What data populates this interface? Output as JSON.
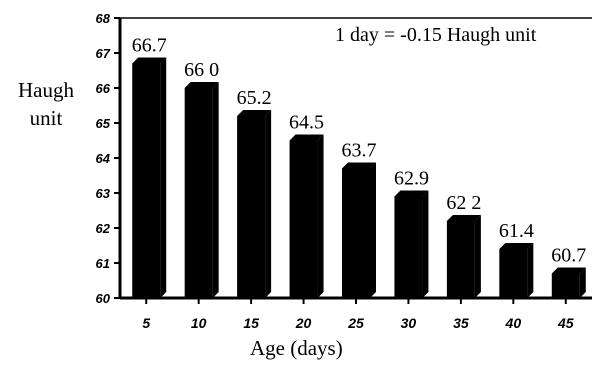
{
  "chart_data": {
    "type": "bar",
    "categories": [
      "5",
      "10",
      "15",
      "20",
      "25",
      "30",
      "35",
      "40",
      "45"
    ],
    "values": [
      66.7,
      66.0,
      65.2,
      64.5,
      63.7,
      62.9,
      62.2,
      61.4,
      60.7
    ],
    "value_labels": [
      "66.7",
      "66 0",
      "65.2",
      "64.5",
      "63.7",
      "62.9",
      "62 2",
      "61.4",
      "60.7"
    ],
    "ylabel": "Haugh unit",
    "xlabel": "Age (days)",
    "annotation": "1 day = -0.15 Haugh unit",
    "ylim": [
      60,
      68
    ],
    "yticks": [
      60,
      61,
      62,
      63,
      64,
      65,
      66,
      67,
      68
    ],
    "bar_color": "#000000",
    "grid": false,
    "legend": "none"
  }
}
